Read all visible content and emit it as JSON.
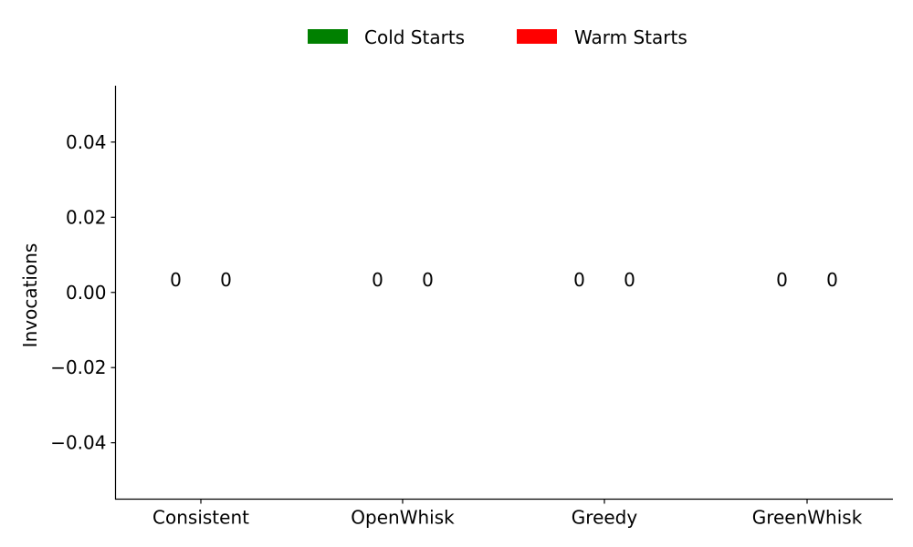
{
  "chart_data": {
    "type": "bar",
    "title": "",
    "xlabel": "",
    "ylabel": "Invocations",
    "categories": [
      "Consistent",
      "OpenWhisk",
      "Greedy",
      "GreenWhisk"
    ],
    "series": [
      {
        "name": "Cold Starts",
        "color": "#008000",
        "values": [
          0,
          0,
          0,
          0
        ]
      },
      {
        "name": "Warm Starts",
        "color": "#ff0000",
        "values": [
          0,
          0,
          0,
          0
        ]
      }
    ],
    "data_labels": [
      [
        "0",
        "0"
      ],
      [
        "0",
        "0"
      ],
      [
        "0",
        "0"
      ],
      [
        "0",
        "0"
      ]
    ],
    "ylim": [
      -0.055,
      0.055
    ],
    "yticks": [
      -0.04,
      -0.02,
      0.0,
      0.02,
      0.04
    ],
    "ytick_labels": [
      "−0.04",
      "−0.02",
      "0.00",
      "0.02",
      "0.04"
    ],
    "grid": false,
    "legend_position": "top-center"
  }
}
